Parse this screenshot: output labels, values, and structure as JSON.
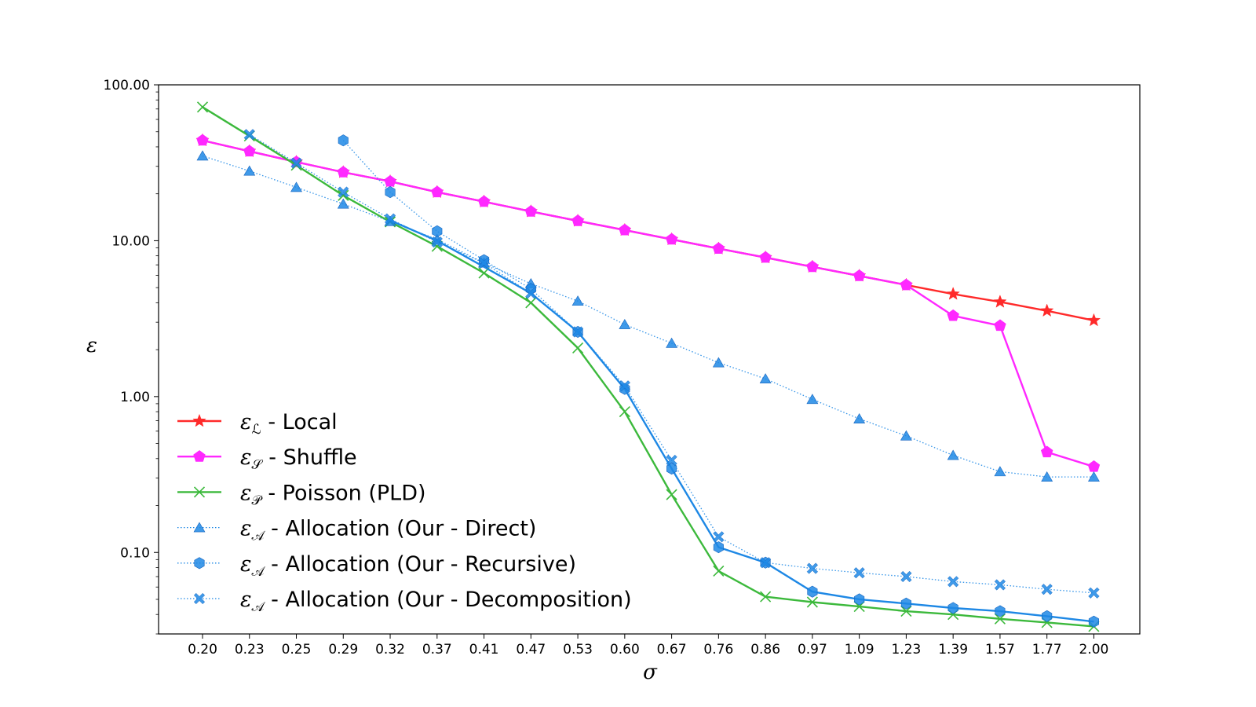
{
  "chart_data": {
    "type": "line",
    "title": "",
    "xlabel": "σ",
    "ylabel": "ε",
    "yscale": "log",
    "ylim": [
      0.03,
      100
    ],
    "yticks": [
      0.1,
      1,
      10,
      100
    ],
    "ytick_labels": [
      "0.10",
      "1.00",
      "10.00",
      "100.00"
    ],
    "categories": [
      "0.20",
      "0.23",
      "0.25",
      "0.29",
      "0.32",
      "0.37",
      "0.41",
      "0.47",
      "0.53",
      "0.60",
      "0.67",
      "0.76",
      "0.86",
      "0.97",
      "1.09",
      "1.23",
      "1.39",
      "1.57",
      "1.77",
      "2.00"
    ],
    "legend_position": "lower-left",
    "series": [
      {
        "name": "Local",
        "symbol": "ε",
        "subscript": "ℒ",
        "label": " - Local",
        "color": "#ff2a2a",
        "linestyle": "solid",
        "marker": "star",
        "values": [
          44,
          37.5,
          32,
          27.5,
          24,
          20.5,
          17.8,
          15.4,
          13.4,
          11.7,
          10.2,
          8.9,
          7.8,
          6.8,
          5.95,
          5.2,
          4.55,
          4.05,
          3.55,
          3.08
        ]
      },
      {
        "name": "Shuffle",
        "symbol": "ε",
        "subscript": "𝒮",
        "label": " - Shuffle",
        "color": "#ff28ff",
        "linestyle": "solid",
        "marker": "pentagon",
        "values": [
          44,
          37.5,
          32,
          27.5,
          24,
          20.5,
          17.8,
          15.4,
          13.4,
          11.7,
          10.2,
          8.9,
          7.8,
          6.8,
          5.95,
          5.2,
          3.3,
          2.85,
          0.44,
          0.355
        ]
      },
      {
        "name": "Poisson (PLD)",
        "symbol": "ε",
        "subscript": "𝒫",
        "label": " - Poisson (PLD)",
        "color": "#3cb93c",
        "linestyle": "solid",
        "marker": "x",
        "values": [
          72,
          47,
          30.5,
          19.5,
          13.2,
          9.2,
          6.2,
          4.0,
          2.05,
          0.8,
          0.235,
          0.076,
          0.052,
          0.048,
          0.045,
          0.042,
          0.04,
          0.0375,
          0.0355,
          0.0335
        ]
      },
      {
        "name": "Allocation (Our - Direct)",
        "symbol": "ε",
        "subscript": "𝒜",
        "label": " - Allocation (Our - Direct)",
        "color": "#1e88e5",
        "linestyle": "dotted",
        "marker": "triangle",
        "values": [
          35,
          28,
          22,
          17.2,
          13.3,
          10.2,
          7.2,
          5.3,
          4.1,
          2.9,
          2.2,
          1.65,
          1.3,
          0.96,
          0.72,
          0.56,
          0.42,
          0.33,
          0.305,
          0.305
        ]
      },
      {
        "name": "Allocation (Our - Recursive)",
        "symbol": "ε",
        "subscript": "𝒜",
        "label": " - Allocation (Our - Recursive)",
        "color": "#1e88e5",
        "linestyle": "dotted",
        "marker": "hexagon",
        "values": [
          null,
          null,
          null,
          44,
          20.5,
          11.5,
          7.5,
          4.9,
          2.6,
          1.12,
          0.345,
          0.108,
          0.086,
          0.056,
          0.05,
          0.047,
          0.044,
          0.042,
          0.039,
          0.036
        ]
      },
      {
        "name": "Allocation (Our - Decomposition)",
        "symbol": "ε",
        "subscript": "𝒜",
        "label": " - Allocation (Our - Decomposition)",
        "color": "#1e88e5",
        "linestyle": "dotted",
        "marker": "xfilled",
        "values": [
          null,
          48,
          31.5,
          20.5,
          13.8,
          9.8,
          7.2,
          4.6,
          2.6,
          1.17,
          0.39,
          0.126,
          0.086,
          0.079,
          0.074,
          0.07,
          0.065,
          0.062,
          0.058,
          0.055
        ]
      }
    ],
    "overlay_solid_line": {
      "name": "Allocation (Our - Recursive) solid segment",
      "color": "#1e88e5",
      "values": [
        null,
        null,
        null,
        null,
        13.5,
        10.0,
        6.8,
        4.6,
        2.6,
        1.12,
        0.345,
        0.108,
        0.086,
        0.056,
        0.05,
        0.047,
        0.044,
        0.042,
        0.039,
        0.036
      ]
    }
  }
}
